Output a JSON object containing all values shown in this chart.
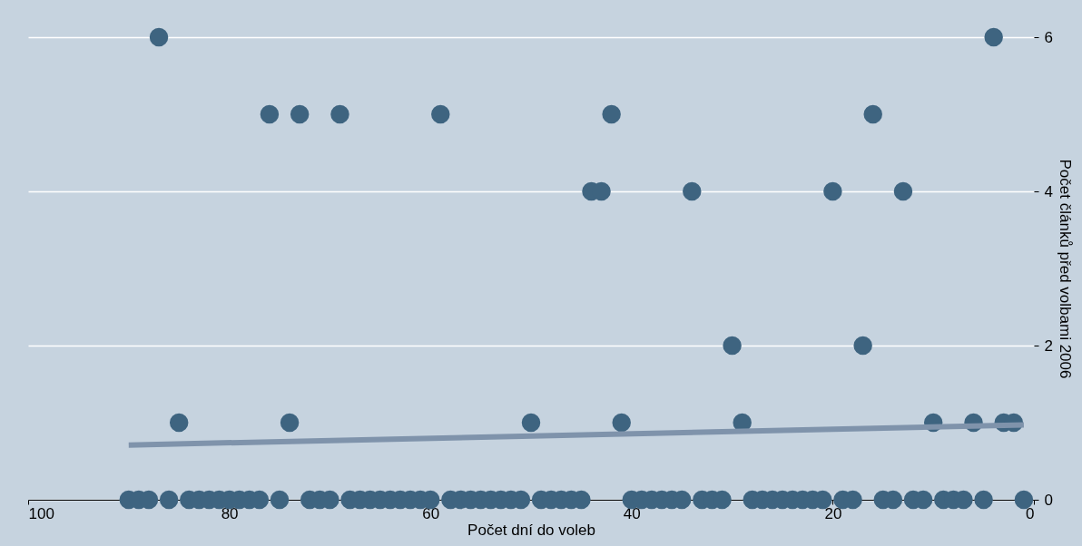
{
  "chart_data": {
    "type": "scatter",
    "xlabel": "Počet dní do voleb",
    "ylabel": "Počet článků před volbami 2006",
    "xlim": [
      100,
      0
    ],
    "xticks": [
      100,
      80,
      60,
      40,
      20,
      0
    ],
    "ylim": [
      0,
      6
    ],
    "yticks": [
      0,
      2,
      4,
      6
    ],
    "grid": "y",
    "marker": "circle",
    "series": [
      {
        "color": "#3e6480",
        "x": [
          90,
          89,
          88,
          87,
          86,
          85,
          84,
          83,
          82,
          81,
          80,
          79,
          78,
          77,
          76,
          75,
          74,
          73,
          72,
          71,
          70,
          69,
          68,
          67,
          66,
          65,
          64,
          63,
          62,
          61,
          60,
          59,
          58,
          57,
          56,
          55,
          54,
          53,
          52,
          51,
          50,
          49,
          48,
          47,
          46,
          45,
          44,
          43,
          42,
          41,
          40,
          39,
          38,
          37,
          36,
          35,
          34,
          33,
          32,
          31,
          30,
          29,
          28,
          27,
          26,
          25,
          24,
          23,
          22,
          21,
          20,
          19,
          18,
          17,
          16,
          15,
          14,
          13,
          12,
          11,
          10,
          9,
          8,
          7,
          6,
          5,
          4,
          3,
          2,
          1
        ],
        "values": [
          0,
          0,
          0,
          6,
          0,
          1,
          0,
          0,
          0,
          0,
          0,
          0,
          0,
          0,
          5,
          0,
          1,
          5,
          0,
          0,
          0,
          5,
          0,
          0,
          0,
          0,
          0,
          0,
          0,
          0,
          0,
          5,
          0,
          0,
          0,
          0,
          0,
          0,
          0,
          0,
          1,
          0,
          0,
          0,
          0,
          0,
          4,
          4,
          5,
          1,
          0,
          0,
          0,
          0,
          0,
          0,
          4,
          0,
          0,
          0,
          2,
          1,
          0,
          0,
          0,
          0,
          0,
          0,
          0,
          0,
          4,
          0,
          0,
          2,
          5,
          0,
          0,
          4,
          0,
          0,
          1,
          0,
          0,
          0,
          1,
          0,
          6,
          1,
          1,
          0
        ]
      },
      {
        "type": "line",
        "color": "#7f93ab",
        "x": [
          90,
          1
        ],
        "values": [
          0.71,
          0.97
        ],
        "marker": "none",
        "line_style": "solid"
      }
    ]
  }
}
